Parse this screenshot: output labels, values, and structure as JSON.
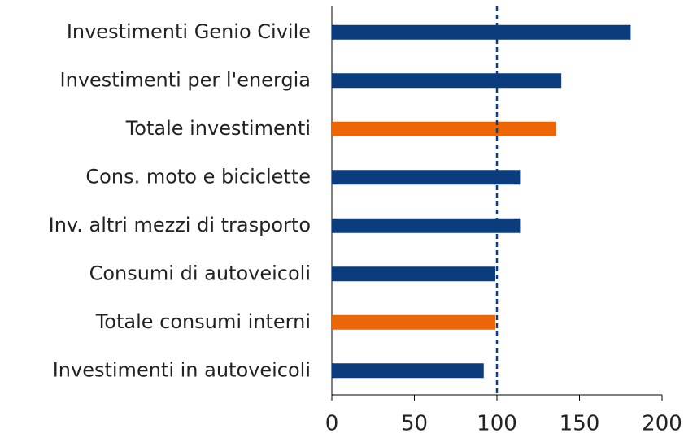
{
  "chart_data": {
    "type": "barh",
    "categories": [
      "Investimenti Genio Civile",
      "Investimenti per l'energia",
      "Totale investimenti",
      "Cons. moto e biciclette",
      "Inv. altri mezzi di trasporto",
      "Consumi di autoveicoli",
      "Totale consumi interni",
      "Investimenti in autoveicoli"
    ],
    "values": [
      181,
      139,
      136,
      114,
      114,
      99,
      99,
      92
    ],
    "colors": [
      "#0b3c7d",
      "#0b3c7d",
      "#ec6608",
      "#0b3c7d",
      "#0b3c7d",
      "#0b3c7d",
      "#ec6608",
      "#0b3c7d"
    ],
    "xlim": [
      0,
      200
    ],
    "xticks": [
      0,
      50,
      100,
      150,
      200
    ],
    "reference_line": 100,
    "reference_color": "#0b3c7d"
  }
}
